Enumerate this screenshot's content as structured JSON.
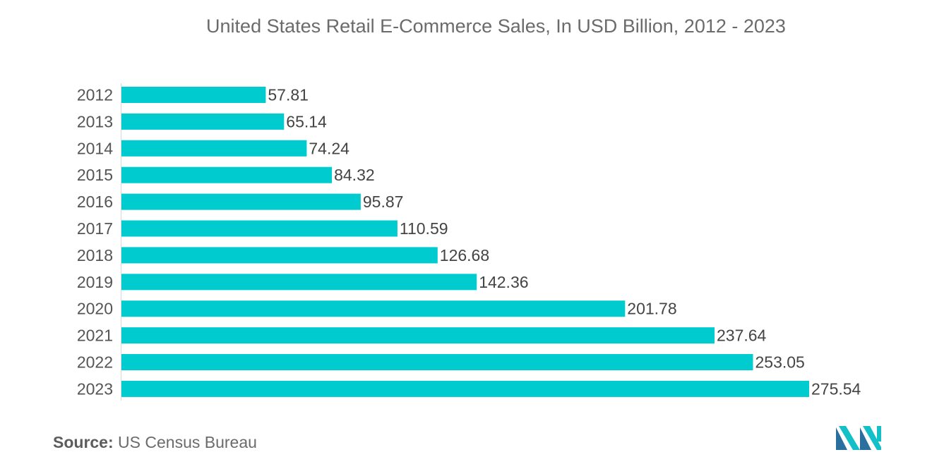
{
  "chart_data": {
    "type": "bar",
    "orientation": "horizontal",
    "title": "United States Retail E-Commerce Sales, In USD Billion, 2012 - 2023",
    "categories": [
      "2012",
      "2013",
      "2014",
      "2015",
      "2016",
      "2017",
      "2018",
      "2019",
      "2020",
      "2021",
      "2022",
      "2023"
    ],
    "values": [
      57.81,
      65.14,
      74.24,
      84.32,
      95.87,
      110.59,
      126.68,
      142.36,
      201.78,
      237.64,
      253.05,
      275.54
    ],
    "value_labels": [
      "57.81",
      "65.14",
      "74.24",
      "84.32",
      "95.87",
      "110.59",
      "126.68",
      "142.36",
      "201.78",
      "237.64",
      "253.05",
      "275.54"
    ],
    "xlabel": "",
    "ylabel": "",
    "xlim": [
      0,
      275.54
    ],
    "grid": false,
    "legend": "none",
    "bar_color": "#00cccf"
  },
  "source": {
    "label": "Source:",
    "text": "US Census Bureau"
  },
  "logo": {
    "icon": "mordor-intelligence-logo-icon",
    "colors": [
      "#2a6f9e",
      "#13c0c8"
    ]
  }
}
